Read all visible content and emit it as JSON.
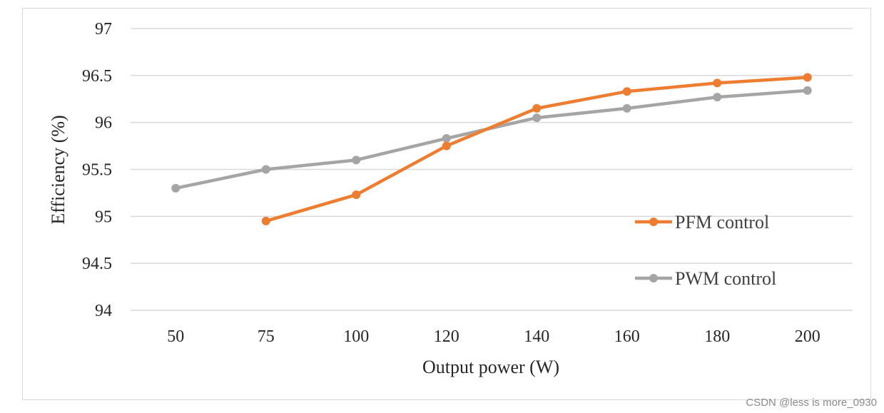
{
  "chart_data": {
    "type": "line",
    "title": "",
    "xlabel": "Output power (W)",
    "ylabel": "Efficiency (%)",
    "categories": [
      "50",
      "75",
      "100",
      "120",
      "140",
      "160",
      "180",
      "200"
    ],
    "ylim": [
      94,
      97
    ],
    "yticks": [
      "94",
      "94.5",
      "95",
      "95.5",
      "96",
      "96.5",
      "97"
    ],
    "grid": true,
    "legend_position": "right",
    "series": [
      {
        "name": "PFM control",
        "color": "#ed7d31",
        "values": [
          null,
          94.95,
          95.23,
          95.75,
          96.15,
          96.33,
          96.42,
          96.48
        ]
      },
      {
        "name": "PWM control",
        "color": "#a5a5a5",
        "values": [
          95.3,
          95.5,
          95.6,
          95.83,
          96.05,
          96.15,
          96.27,
          96.34
        ]
      }
    ]
  },
  "watermark": "CSDN @less is more_0930"
}
